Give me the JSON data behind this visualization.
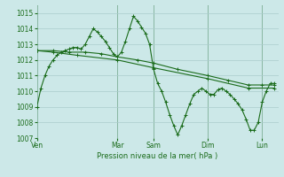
{
  "background_color": "#cce8e8",
  "grid_color": "#aacccc",
  "line_color": "#1a6b1a",
  "xlabel": "Pression niveau de la mer( hPa )",
  "ylim": [
    1007,
    1015.5
  ],
  "yticks": [
    1007,
    1008,
    1009,
    1010,
    1011,
    1012,
    1013,
    1014,
    1015
  ],
  "day_labels": [
    "Ven",
    "Mar",
    "Sam",
    "Dim",
    "Lun"
  ],
  "day_positions": [
    0,
    40,
    58,
    85,
    112
  ],
  "series1_x": [
    0,
    2,
    4,
    6,
    8,
    10,
    12,
    14,
    16,
    18,
    20,
    22,
    24,
    26,
    28,
    30,
    32,
    34,
    36,
    38,
    40,
    42,
    44,
    46,
    48,
    50,
    52,
    54,
    56,
    58,
    60,
    62,
    64,
    66,
    68,
    70,
    72,
    74,
    76,
    78,
    80,
    82,
    84,
    86,
    88,
    90,
    92,
    94,
    96,
    98,
    100,
    102,
    104,
    106,
    108,
    110,
    112,
    114,
    116,
    118
  ],
  "series1_y": [
    1009.0,
    1010.2,
    1011.0,
    1011.6,
    1012.0,
    1012.3,
    1012.5,
    1012.6,
    1012.7,
    1012.8,
    1012.8,
    1012.7,
    1013.0,
    1013.5,
    1014.0,
    1013.8,
    1013.5,
    1013.2,
    1012.8,
    1012.4,
    1012.2,
    1012.5,
    1013.2,
    1014.0,
    1014.8,
    1014.5,
    1014.1,
    1013.7,
    1013.0,
    1011.4,
    1010.5,
    1010.0,
    1009.3,
    1008.5,
    1007.8,
    1007.2,
    1007.8,
    1008.5,
    1009.2,
    1009.8,
    1010.0,
    1010.2,
    1010.0,
    1009.8,
    1009.8,
    1010.1,
    1010.2,
    1010.0,
    1009.8,
    1009.5,
    1009.2,
    1008.8,
    1008.2,
    1007.5,
    1007.5,
    1008.0,
    1009.3,
    1010.0,
    1010.5,
    1010.5
  ],
  "series2_x": [
    0,
    8,
    16,
    24,
    32,
    40,
    50,
    58,
    70,
    85,
    95,
    105,
    112,
    118
  ],
  "series2_y": [
    1012.6,
    1012.6,
    1012.5,
    1012.5,
    1012.4,
    1012.2,
    1012.0,
    1011.8,
    1011.4,
    1011.0,
    1010.7,
    1010.4,
    1010.4,
    1010.4
  ],
  "series3_x": [
    0,
    8,
    20,
    40,
    58,
    85,
    105,
    118
  ],
  "series3_y": [
    1012.6,
    1012.5,
    1012.3,
    1012.0,
    1011.5,
    1010.8,
    1010.2,
    1010.2
  ],
  "xlim": [
    0,
    120
  ]
}
